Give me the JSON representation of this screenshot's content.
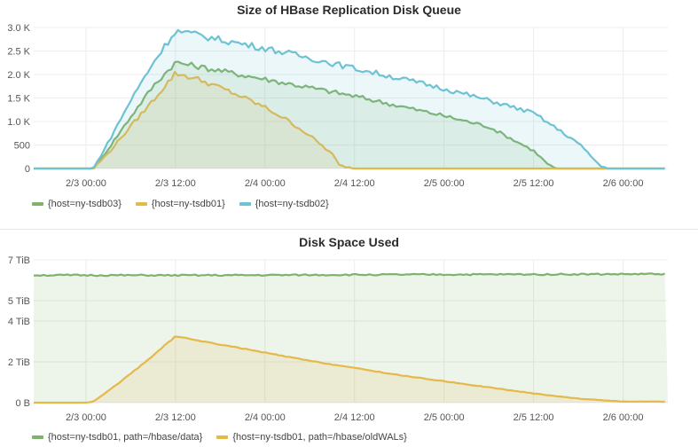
{
  "colors": {
    "tsdb03": "#7eb26d",
    "tsdb01": "#e5b84a",
    "tsdb02": "#6ec3d3",
    "grid": "#ececec"
  },
  "chart_data": [
    {
      "type": "area",
      "title": "Size of HBase Replication Disk Queue",
      "xlabel": "",
      "ylabel": "",
      "x_range": [
        "2/2 18:00",
        "2/6 06:00"
      ],
      "x_ticks": [
        "2/3 00:00",
        "2/3 12:00",
        "2/4 00:00",
        "2/4 12:00",
        "2/5 00:00",
        "2/5 12:00",
        "2/6 00:00"
      ],
      "y_ticks": [
        "0",
        "500",
        "1.0 K",
        "1.5 K",
        "2.0 K",
        "2.5 K",
        "3.0 K"
      ],
      "ylim": [
        0,
        3000
      ],
      "grid": true,
      "legend_position": "bottom-left",
      "x_unit": "hours since 2/3 00:00",
      "series": [
        {
          "name": "{host=ny-tsdb03}",
          "color": "#7eb26d",
          "x": [
            -7,
            0,
            1,
            3,
            6,
            9,
            12,
            15,
            18,
            21,
            24,
            30,
            36,
            42,
            48,
            54,
            60,
            62,
            63,
            66,
            78
          ],
          "y": [
            0,
            0,
            0,
            420,
            1100,
            1750,
            2260,
            2170,
            2080,
            1990,
            1900,
            1720,
            1540,
            1330,
            1120,
            890,
            380,
            80,
            0,
            0,
            0
          ]
        },
        {
          "name": "{host=ny-tsdb01}",
          "color": "#e5b84a",
          "x": [
            -7,
            0,
            1,
            3,
            6,
            9,
            12,
            15,
            18,
            21,
            24,
            27,
            30,
            33,
            34,
            36,
            42,
            48,
            54,
            60,
            66,
            78
          ],
          "y": [
            0,
            0,
            0,
            330,
            900,
            1450,
            2030,
            1900,
            1720,
            1520,
            1300,
            1030,
            700,
            310,
            60,
            0,
            0,
            0,
            0,
            0,
            0,
            0
          ]
        },
        {
          "name": "{host=ny-tsdb02}",
          "color": "#6ec3d3",
          "x": [
            -7,
            0,
            1,
            3,
            6,
            9,
            12,
            15,
            18,
            21,
            24,
            30,
            36,
            42,
            48,
            54,
            60,
            66,
            69,
            70,
            78
          ],
          "y": [
            0,
            0,
            0,
            560,
            1450,
            2250,
            2930,
            2840,
            2740,
            2650,
            2560,
            2350,
            2130,
            1920,
            1700,
            1450,
            1180,
            540,
            50,
            0,
            0
          ]
        }
      ]
    },
    {
      "type": "area",
      "title": "Disk Space Used",
      "xlabel": "",
      "ylabel": "",
      "x_range": [
        "2/2 18:00",
        "2/6 06:00"
      ],
      "x_ticks": [
        "2/3 00:00",
        "2/3 12:00",
        "2/4 00:00",
        "2/4 12:00",
        "2/5 00:00",
        "2/5 12:00",
        "2/6 00:00"
      ],
      "y_ticks": [
        "0 B",
        "2 TiB",
        "4 TiB",
        "5 TiB",
        "7 TiB"
      ],
      "ylim": [
        0,
        7
      ],
      "grid": true,
      "legend_position": "bottom-left",
      "x_unit": "hours since 2/3 00:00",
      "series": [
        {
          "name": "{host=ny-tsdb01, path=/hbase/data}",
          "color": "#7eb26d",
          "x": [
            -7,
            12,
            24,
            36,
            48,
            60,
            72,
            78
          ],
          "y": [
            6.25,
            6.24,
            6.25,
            6.27,
            6.28,
            6.29,
            6.3,
            6.31
          ]
        },
        {
          "name": "{host=ny-tsdb01, path=/hbase/oldWALs}",
          "color": "#e5b84a",
          "x": [
            -7,
            0,
            1,
            4,
            8,
            12,
            18,
            24,
            30,
            36,
            42,
            48,
            54,
            60,
            66,
            72,
            78
          ],
          "y": [
            0,
            0,
            0.05,
            0.85,
            2.0,
            3.25,
            2.85,
            2.45,
            2.05,
            1.7,
            1.35,
            1.05,
            0.75,
            0.45,
            0.2,
            0.05,
            0.05
          ]
        }
      ]
    }
  ]
}
